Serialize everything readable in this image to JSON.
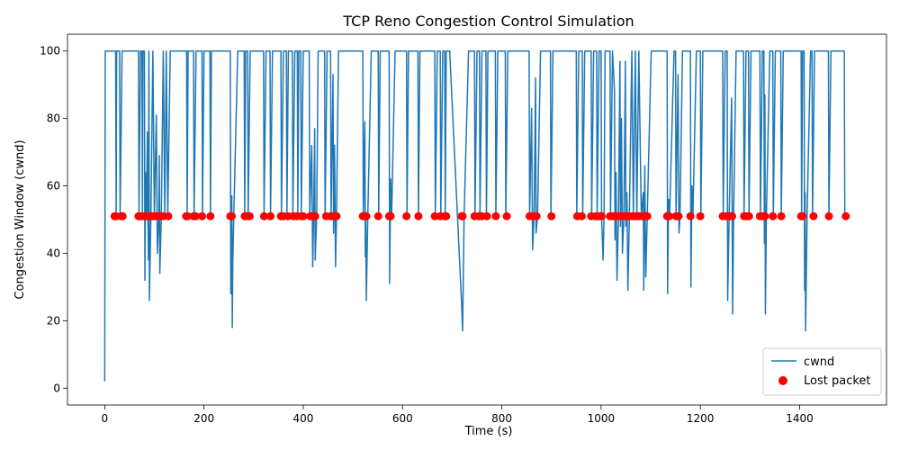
{
  "chart_data": {
    "type": "line",
    "title": "TCP Reno Congestion Control Simulation",
    "xlabel": "Time (s)",
    "ylabel": "Congestion Window (cwnd)",
    "xlim": [
      -75,
      1575
    ],
    "ylim": [
      -5,
      105
    ],
    "xticks": [
      0,
      200,
      400,
      600,
      800,
      1000,
      1200,
      1400
    ],
    "yticks": [
      0,
      20,
      40,
      60,
      80,
      100
    ],
    "grid": false,
    "legend_position": "lower-right",
    "colors": {
      "cwnd": "#1f77b4",
      "lost": "#ff0000"
    },
    "series": [
      {
        "name": "cwnd",
        "kind": "line",
        "points": [
          [
            0,
            2
          ],
          [
            1,
            100
          ],
          [
            22,
            100
          ],
          [
            23,
            51
          ],
          [
            24,
            100
          ],
          [
            30,
            100
          ],
          [
            31,
            51
          ],
          [
            35,
            100
          ],
          [
            68,
            100
          ],
          [
            69,
            51
          ],
          [
            72,
            100
          ],
          [
            75,
            100
          ],
          [
            76,
            51
          ],
          [
            77,
            100
          ],
          [
            80,
            100
          ],
          [
            81,
            32
          ],
          [
            82,
            64
          ],
          [
            84,
            51
          ],
          [
            86,
            76
          ],
          [
            87,
            51
          ],
          [
            88,
            38
          ],
          [
            89,
            100
          ],
          [
            90,
            26
          ],
          [
            93,
            51
          ],
          [
            97,
            100
          ],
          [
            100,
            51
          ],
          [
            104,
            81
          ],
          [
            106,
            40
          ],
          [
            109,
            51
          ],
          [
            110,
            69
          ],
          [
            111,
            34
          ],
          [
            114,
            51
          ],
          [
            118,
            100
          ],
          [
            121,
            51
          ],
          [
            124,
            100
          ],
          [
            127,
            51
          ],
          [
            132,
            100
          ],
          [
            165,
            100
          ],
          [
            166,
            51
          ],
          [
            168,
            100
          ],
          [
            179,
            100
          ],
          [
            180,
            51
          ],
          [
            184,
            100
          ],
          [
            196,
            100
          ],
          [
            197,
            51
          ],
          [
            200,
            100
          ],
          [
            212,
            100
          ],
          [
            213,
            51
          ],
          [
            215,
            100
          ],
          [
            253,
            100
          ],
          [
            254,
            28
          ],
          [
            256,
            57
          ],
          [
            257,
            18
          ],
          [
            258,
            37
          ],
          [
            260,
            51
          ],
          [
            268,
            100
          ],
          [
            281,
            100
          ],
          [
            282,
            51
          ],
          [
            284,
            100
          ],
          [
            288,
            100
          ],
          [
            289,
            51
          ],
          [
            293,
            100
          ],
          [
            320,
            100
          ],
          [
            321,
            51
          ],
          [
            325,
            100
          ],
          [
            333,
            100
          ],
          [
            334,
            51
          ],
          [
            338,
            100
          ],
          [
            355,
            100
          ],
          [
            356,
            51
          ],
          [
            360,
            100
          ],
          [
            366,
            100
          ],
          [
            367,
            51
          ],
          [
            370,
            100
          ],
          [
            378,
            100
          ],
          [
            379,
            51
          ],
          [
            383,
            100
          ],
          [
            388,
            100
          ],
          [
            389,
            51
          ],
          [
            391,
            100
          ],
          [
            395,
            100
          ],
          [
            396,
            51
          ],
          [
            400,
            100
          ],
          [
            412,
            100
          ],
          [
            413,
            51
          ],
          [
            417,
            72
          ],
          [
            419,
            36
          ],
          [
            421,
            51
          ],
          [
            423,
            77
          ],
          [
            424,
            38
          ],
          [
            427,
            51
          ],
          [
            430,
            100
          ],
          [
            443,
            100
          ],
          [
            444,
            51
          ],
          [
            448,
            100
          ],
          [
            455,
            100
          ],
          [
            456,
            51
          ],
          [
            460,
            93
          ],
          [
            461,
            46
          ],
          [
            463,
            72
          ],
          [
            465,
            36
          ],
          [
            467,
            51
          ],
          [
            471,
            100
          ],
          [
            520,
            100
          ],
          [
            521,
            51
          ],
          [
            524,
            79
          ],
          [
            525,
            39
          ],
          [
            526,
            51
          ],
          [
            527,
            26
          ],
          [
            530,
            51
          ],
          [
            537,
            100
          ],
          [
            551,
            100
          ],
          [
            552,
            51
          ],
          [
            555,
            100
          ],
          [
            573,
            100
          ],
          [
            574,
            31
          ],
          [
            576,
            62
          ],
          [
            578,
            51
          ],
          [
            585,
            100
          ],
          [
            608,
            100
          ],
          [
            609,
            51
          ],
          [
            612,
            100
          ],
          [
            631,
            100
          ],
          [
            632,
            51
          ],
          [
            635,
            100
          ],
          [
            665,
            100
          ],
          [
            666,
            51
          ],
          [
            670,
            100
          ],
          [
            676,
            100
          ],
          [
            677,
            51
          ],
          [
            681,
            100
          ],
          [
            685,
            100
          ],
          [
            686,
            51
          ],
          [
            688,
            100
          ],
          [
            695,
            100
          ],
          [
            719,
            25
          ],
          [
            721,
            17
          ],
          [
            724,
            51
          ],
          [
            733,
            100
          ],
          [
            745,
            100
          ],
          [
            746,
            51
          ],
          [
            750,
            100
          ],
          [
            755,
            100
          ],
          [
            756,
            51
          ],
          [
            760,
            100
          ],
          [
            768,
            100
          ],
          [
            769,
            51
          ],
          [
            772,
            100
          ],
          [
            787,
            100
          ],
          [
            788,
            51
          ],
          [
            792,
            100
          ],
          [
            807,
            100
          ],
          [
            808,
            51
          ],
          [
            812,
            100
          ],
          [
            855,
            100
          ],
          [
            856,
            51
          ],
          [
            860,
            83
          ],
          [
            862,
            41
          ],
          [
            865,
            51
          ],
          [
            868,
            92
          ],
          [
            869,
            46
          ],
          [
            872,
            51
          ],
          [
            878,
            100
          ],
          [
            898,
            100
          ],
          [
            899,
            51
          ],
          [
            903,
            100
          ],
          [
            950,
            100
          ],
          [
            951,
            51
          ],
          [
            955,
            100
          ],
          [
            962,
            100
          ],
          [
            963,
            51
          ],
          [
            967,
            100
          ],
          [
            980,
            100
          ],
          [
            981,
            51
          ],
          [
            985,
            100
          ],
          [
            991,
            100
          ],
          [
            992,
            51
          ],
          [
            996,
            100
          ],
          [
            1000,
            100
          ],
          [
            1001,
            51
          ],
          [
            1004,
            38
          ],
          [
            1006,
            51
          ],
          [
            1008,
            100
          ],
          [
            1018,
            100
          ],
          [
            1019,
            51
          ],
          [
            1023,
            100
          ],
          [
            1027,
            88
          ],
          [
            1028,
            44
          ],
          [
            1030,
            64
          ],
          [
            1032,
            32
          ],
          [
            1035,
            51
          ],
          [
            1038,
            97
          ],
          [
            1039,
            48
          ],
          [
            1041,
            80
          ],
          [
            1043,
            40
          ],
          [
            1046,
            51
          ],
          [
            1049,
            97
          ],
          [
            1050,
            48
          ],
          [
            1052,
            58
          ],
          [
            1054,
            29
          ],
          [
            1057,
            51
          ],
          [
            1062,
            100
          ],
          [
            1065,
            51
          ],
          [
            1069,
            100
          ],
          [
            1072,
            51
          ],
          [
            1076,
            100
          ],
          [
            1081,
            51
          ],
          [
            1085,
            58
          ],
          [
            1086,
            29
          ],
          [
            1088,
            66
          ],
          [
            1090,
            33
          ],
          [
            1093,
            51
          ],
          [
            1101,
            100
          ],
          [
            1133,
            100
          ],
          [
            1134,
            28
          ],
          [
            1136,
            56
          ],
          [
            1138,
            51
          ],
          [
            1147,
            100
          ],
          [
            1150,
            100
          ],
          [
            1151,
            51
          ],
          [
            1155,
            93
          ],
          [
            1157,
            46
          ],
          [
            1159,
            51
          ],
          [
            1164,
            100
          ],
          [
            1180,
            100
          ],
          [
            1181,
            30
          ],
          [
            1183,
            60
          ],
          [
            1185,
            51
          ],
          [
            1192,
            100
          ],
          [
            1200,
            100
          ],
          [
            1201,
            51
          ],
          [
            1205,
            100
          ],
          [
            1245,
            100
          ],
          [
            1246,
            51
          ],
          [
            1250,
            100
          ],
          [
            1254,
            100
          ],
          [
            1255,
            26
          ],
          [
            1258,
            51
          ],
          [
            1263,
            86
          ],
          [
            1265,
            22
          ],
          [
            1267,
            51
          ],
          [
            1272,
            100
          ],
          [
            1287,
            100
          ],
          [
            1288,
            51
          ],
          [
            1292,
            100
          ],
          [
            1297,
            100
          ],
          [
            1298,
            51
          ],
          [
            1302,
            100
          ],
          [
            1320,
            100
          ],
          [
            1321,
            51
          ],
          [
            1325,
            100
          ],
          [
            1328,
            100
          ],
          [
            1329,
            43
          ],
          [
            1330,
            87
          ],
          [
            1331,
            22
          ],
          [
            1333,
            51
          ],
          [
            1340,
            100
          ],
          [
            1346,
            100
          ],
          [
            1347,
            51
          ],
          [
            1351,
            100
          ],
          [
            1362,
            100
          ],
          [
            1363,
            51
          ],
          [
            1367,
            100
          ],
          [
            1403,
            100
          ],
          [
            1404,
            51
          ],
          [
            1406,
            100
          ],
          [
            1409,
            100
          ],
          [
            1410,
            29
          ],
          [
            1411,
            58
          ],
          [
            1412,
            17
          ],
          [
            1415,
            51
          ],
          [
            1422,
            100
          ],
          [
            1425,
            100
          ],
          [
            1426,
            51
          ],
          [
            1430,
            100
          ],
          [
            1458,
            100
          ],
          [
            1459,
            51
          ],
          [
            1463,
            100
          ],
          [
            1490,
            100
          ],
          [
            1491,
            51
          ],
          [
            1495,
            51
          ]
        ]
      },
      {
        "name": "Lost packet",
        "kind": "scatter",
        "y": 51,
        "x": [
          20,
          23,
          33,
          36,
          68,
          71,
          76,
          81,
          86,
          92,
          96,
          101,
          106,
          112,
          118,
          128,
          164,
          167,
          179,
          183,
          196,
          213,
          253,
          256,
          282,
          286,
          292,
          321,
          334,
          355,
          360,
          369,
          380,
          387,
          396,
          400,
          414,
          419,
          424,
          446,
          455,
          460,
          467,
          520,
          524,
          527,
          551,
          573,
          576,
          608,
          632,
          665,
          676,
          685,
          688,
          719,
          721,
          745,
          754,
          760,
          770,
          788,
          810,
          856,
          862,
          870,
          900,
          952,
          961,
          980,
          989,
          995,
          1001,
          1018,
          1023,
          1030,
          1036,
          1043,
          1050,
          1054,
          1062,
          1065,
          1071,
          1076,
          1083,
          1089,
          1093,
          1133,
          1137,
          1151,
          1156,
          1180,
          1200,
          1245,
          1252,
          1257,
          1261,
          1264,
          1288,
          1294,
          1298,
          1320,
          1325,
          1330,
          1346,
          1363,
          1403,
          1406,
          1428,
          1459,
          1493
        ]
      }
    ]
  }
}
